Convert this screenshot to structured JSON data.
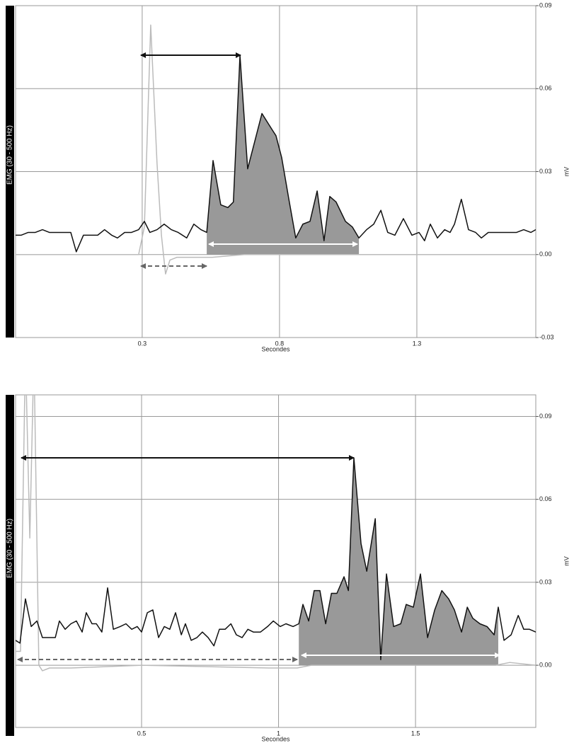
{
  "chart_data": [
    {
      "type": "line",
      "channel": "EMG (30 - 500 Hz)",
      "x_label": "Secondes",
      "y_label": "mV",
      "xlim": [
        -0.161,
        1.733
      ],
      "ylim": [
        -0.03,
        0.09
      ],
      "xticks": [
        0.3,
        0.8,
        1.3
      ],
      "yticks": [
        {
          "value": 0.09,
          "label": "0.09"
        },
        {
          "value": 0.06,
          "label": "0.06"
        },
        {
          "value": 0.03,
          "label": "0.03"
        },
        {
          "value": 0,
          "label": "0.00"
        },
        {
          "value": -0.03,
          "label": "-0.03"
        }
      ],
      "grid": true,
      "series": [
        {
          "type": "area",
          "color": "#999999",
          "x": [
            0.535,
            0.558,
            0.586,
            0.612,
            0.632,
            0.656,
            0.684,
            0.736,
            0.774,
            0.787,
            0.808,
            0.834,
            0.859,
            0.885,
            0.911,
            0.937,
            0.962,
            0.983,
            1.006,
            1.04,
            1.065,
            1.089
          ],
          "values": [
            0.008,
            0.034,
            0.018,
            0.017,
            0.019,
            0.072,
            0.031,
            0.051,
            0.045,
            0.043,
            0.035,
            0.02,
            0.006,
            0.011,
            0.012,
            0.023,
            0.005,
            0.021,
            0.019,
            0.012,
            0.01,
            0.006
          ]
        },
        {
          "type": "line",
          "color": "#bbbbbb",
          "x": [
            -0.161,
            0.287,
            0.308,
            0.331,
            0.354,
            0.37,
            0.385,
            0.401,
            0.426,
            0.555,
            0.671,
            1.733
          ],
          "values": [
            0,
            0,
            0.01,
            0.083,
            0.033,
            0.007,
            -0.007,
            -0.002,
            -0.001,
            -0.001,
            0,
            0
          ]
        },
        {
          "type": "line",
          "color": "#111111",
          "x": [
            -0.161,
            -0.141,
            -0.115,
            -0.089,
            -0.063,
            -0.038,
            -0.012,
            0.019,
            0.04,
            0.06,
            0.086,
            0.112,
            0.138,
            0.163,
            0.189,
            0.21,
            0.236,
            0.261,
            0.287,
            0.308,
            0.328,
            0.354,
            0.38,
            0.406,
            0.431,
            0.462,
            0.488,
            0.514,
            0.535,
            0.558,
            0.586,
            0.612,
            0.632,
            0.656,
            0.684,
            0.736,
            0.774,
            0.787,
            0.808,
            0.834,
            0.859,
            0.885,
            0.911,
            0.937,
            0.962,
            0.983,
            1.006,
            1.04,
            1.065,
            1.089,
            1.117,
            1.143,
            1.169,
            1.194,
            1.22,
            1.251,
            1.282,
            1.308,
            1.328,
            1.349,
            1.375,
            1.401,
            1.421,
            1.437,
            1.462,
            1.488,
            1.514,
            1.535,
            1.56,
            1.586,
            1.617,
            1.643,
            1.663,
            1.689,
            1.715,
            1.733
          ],
          "values": [
            0.007,
            0.007,
            0.008,
            0.008,
            0.009,
            0.008,
            0.008,
            0.008,
            0.008,
            0.001,
            0.007,
            0.007,
            0.007,
            0.009,
            0.007,
            0.006,
            0.008,
            0.008,
            0.009,
            0.012,
            0.008,
            0.009,
            0.011,
            0.009,
            0.008,
            0.006,
            0.011,
            0.009,
            0.008,
            0.034,
            0.018,
            0.017,
            0.019,
            0.072,
            0.031,
            0.051,
            0.045,
            0.043,
            0.035,
            0.02,
            0.006,
            0.011,
            0.012,
            0.023,
            0.005,
            0.021,
            0.019,
            0.012,
            0.01,
            0.006,
            0.009,
            0.011,
            0.016,
            0.008,
            0.007,
            0.013,
            0.007,
            0.008,
            0.005,
            0.011,
            0.006,
            0.009,
            0.008,
            0.011,
            0.02,
            0.009,
            0.008,
            0.006,
            0.008,
            0.008,
            0.008,
            0.008,
            0.008,
            0.009,
            0.008,
            0.009
          ]
        }
      ]
    },
    {
      "type": "line",
      "channel": "EMG (30 - 500 Hz)",
      "x_label": "Secondes",
      "y_label": "mV",
      "xlim": [
        0.04,
        1.939
      ],
      "ylim": [
        -0.0225,
        0.0978
      ],
      "xticks": [
        0.5,
        1,
        1.5
      ],
      "yticks": [
        {
          "value": 0.09,
          "label": "0.09"
        },
        {
          "value": 0.06,
          "label": "0.06"
        },
        {
          "value": 0.03,
          "label": "0.03"
        },
        {
          "value": 0,
          "label": "0.00"
        }
      ],
      "grid": true,
      "series": [
        {
          "type": "area",
          "color": "#999999",
          "x": [
            1.074,
            1.089,
            1.11,
            1.13,
            1.151,
            1.172,
            1.193,
            1.213,
            1.239,
            1.255,
            1.275,
            1.301,
            1.322,
            1.353,
            1.373,
            1.394,
            1.42,
            1.446,
            1.466,
            1.492,
            1.518,
            1.544,
            1.57,
            1.596,
            1.621,
            1.642,
            1.668,
            1.689,
            1.709,
            1.735,
            1.761,
            1.787,
            1.802
          ],
          "values": [
            0.015,
            0.022,
            0.016,
            0.027,
            0.027,
            0.015,
            0.026,
            0.026,
            0.032,
            0.027,
            0.075,
            0.044,
            0.034,
            0.053,
            0.002,
            0.033,
            0.014,
            0.015,
            0.022,
            0.021,
            0.033,
            0.01,
            0.02,
            0.027,
            0.024,
            0.02,
            0.012,
            0.021,
            0.017,
            0.015,
            0.014,
            0.011,
            0.021
          ]
        },
        {
          "type": "line",
          "color": "#bbbbbb",
          "x": [
            0.04,
            0.058,
            0.076,
            0.092,
            0.107,
            0.125,
            0.138,
            0.164,
            0.242,
            0.5,
            0.965,
            1.068,
            1.12,
            1.792,
            1.844,
            1.939
          ],
          "values": [
            0.005,
            0.005,
            0.113,
            0.046,
            0.113,
            0,
            -0.002,
            -0.001,
            -0.001,
            0,
            -0.001,
            -0.001,
            0,
            0,
            0.001,
            0
          ]
        },
        {
          "type": "line",
          "color": "#111111",
          "x": [
            0.04,
            0.056,
            0.076,
            0.097,
            0.118,
            0.138,
            0.164,
            0.185,
            0.2,
            0.221,
            0.242,
            0.262,
            0.283,
            0.298,
            0.319,
            0.335,
            0.355,
            0.376,
            0.397,
            0.422,
            0.443,
            0.464,
            0.484,
            0.5,
            0.521,
            0.541,
            0.562,
            0.583,
            0.603,
            0.624,
            0.645,
            0.66,
            0.681,
            0.702,
            0.722,
            0.743,
            0.764,
            0.784,
            0.805,
            0.826,
            0.846,
            0.867,
            0.888,
            0.908,
            0.934,
            0.96,
            0.981,
            1.006,
            1.027,
            1.053,
            1.074,
            1.089,
            1.11,
            1.13,
            1.151,
            1.172,
            1.193,
            1.213,
            1.239,
            1.255,
            1.275,
            1.301,
            1.322,
            1.353,
            1.373,
            1.394,
            1.42,
            1.446,
            1.466,
            1.492,
            1.518,
            1.544,
            1.57,
            1.596,
            1.621,
            1.642,
            1.668,
            1.689,
            1.709,
            1.735,
            1.761,
            1.787,
            1.802,
            1.823,
            1.849,
            1.875,
            1.895,
            1.916,
            1.939
          ],
          "values": [
            0.009,
            0.008,
            0.024,
            0.014,
            0.016,
            0.01,
            0.01,
            0.01,
            0.016,
            0.013,
            0.015,
            0.016,
            0.012,
            0.019,
            0.015,
            0.015,
            0.012,
            0.028,
            0.013,
            0.014,
            0.015,
            0.013,
            0.014,
            0.012,
            0.019,
            0.02,
            0.01,
            0.014,
            0.013,
            0.019,
            0.011,
            0.015,
            0.009,
            0.01,
            0.012,
            0.01,
            0.007,
            0.013,
            0.013,
            0.015,
            0.011,
            0.01,
            0.013,
            0.012,
            0.012,
            0.014,
            0.016,
            0.014,
            0.015,
            0.014,
            0.015,
            0.022,
            0.016,
            0.027,
            0.027,
            0.015,
            0.026,
            0.026,
            0.032,
            0.027,
            0.075,
            0.044,
            0.034,
            0.053,
            0.002,
            0.033,
            0.014,
            0.015,
            0.022,
            0.021,
            0.033,
            0.01,
            0.02,
            0.027,
            0.024,
            0.02,
            0.012,
            0.021,
            0.017,
            0.015,
            0.014,
            0.011,
            0.021,
            0.009,
            0.011,
            0.018,
            0.013,
            0.013,
            0.012
          ]
        }
      ]
    }
  ]
}
